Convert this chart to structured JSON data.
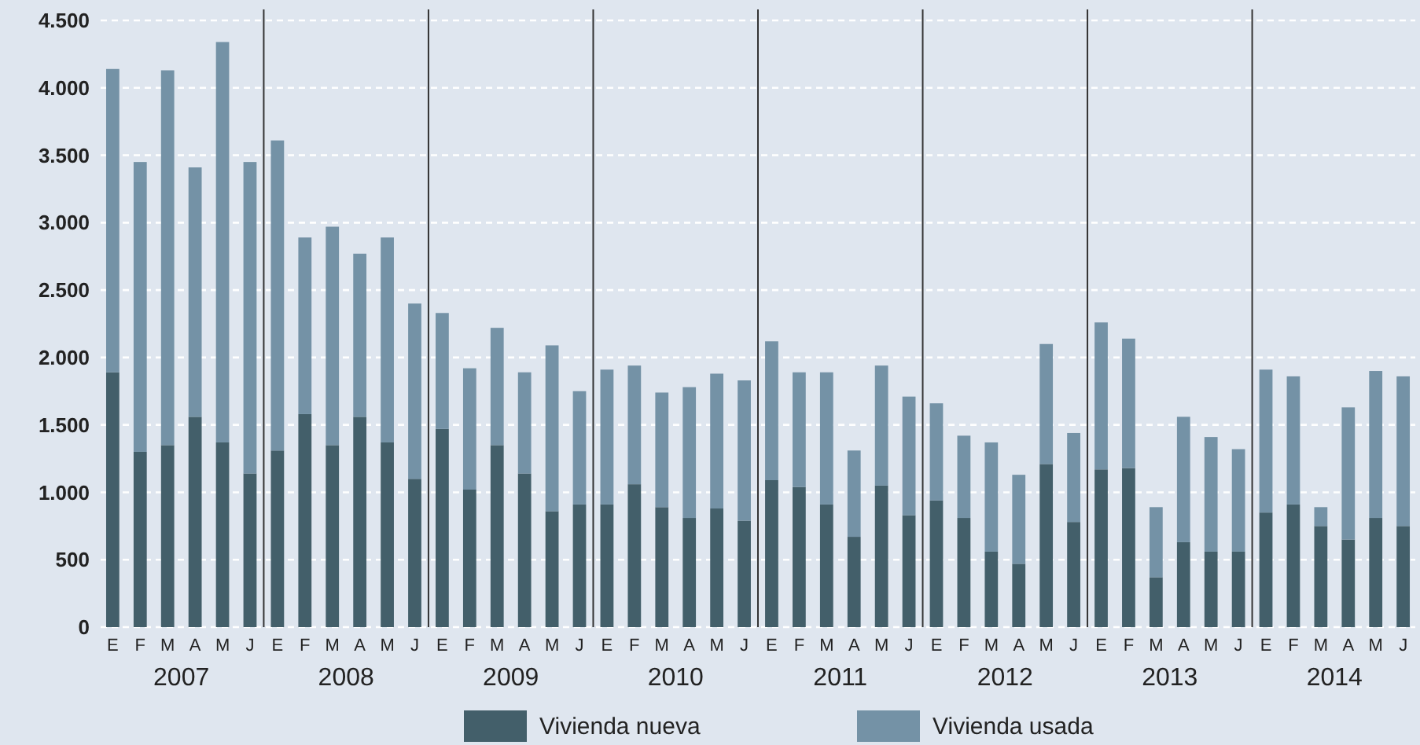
{
  "chart_data": {
    "type": "bar",
    "stacked": true,
    "categories": [
      "E",
      "F",
      "M",
      "A",
      "M",
      "J",
      "E",
      "F",
      "M",
      "A",
      "M",
      "J",
      "E",
      "F",
      "M",
      "A",
      "M",
      "J",
      "E",
      "F",
      "M",
      "A",
      "M",
      "J",
      "E",
      "F",
      "M",
      "A",
      "M",
      "J",
      "E",
      "F",
      "M",
      "A",
      "M",
      "J",
      "E",
      "F",
      "M",
      "A",
      "M",
      "J",
      "E",
      "F",
      "M",
      "A",
      "M",
      "J"
    ],
    "series": [
      {
        "name": "Vivienda nueva",
        "color": "#435f6a",
        "values": [
          1890,
          1300,
          1350,
          1560,
          1370,
          1140,
          1310,
          1580,
          1350,
          1560,
          1370,
          1100,
          1470,
          1020,
          1350,
          1140,
          860,
          910,
          910,
          1060,
          890,
          810,
          880,
          790,
          1090,
          1040,
          910,
          670,
          1050,
          830,
          940,
          810,
          560,
          470,
          1210,
          780,
          1170,
          1180,
          370,
          630,
          560,
          560,
          850,
          910,
          750,
          650,
          810,
          750
        ]
      },
      {
        "name": "Vivienda usada",
        "color": "#7492a6",
        "values": [
          2250,
          2150,
          2780,
          1850,
          2970,
          2310,
          2300,
          1310,
          1620,
          1210,
          1520,
          1300,
          860,
          900,
          870,
          750,
          1230,
          840,
          1000,
          880,
          850,
          970,
          1000,
          1040,
          1030,
          850,
          980,
          640,
          890,
          880,
          720,
          610,
          810,
          660,
          890,
          660,
          1090,
          960,
          520,
          930,
          850,
          760,
          1060,
          950,
          140,
          980,
          1090,
          1110
        ]
      }
    ],
    "ylim": [
      0,
      4500
    ],
    "yticks": [
      0,
      {
        "value": 500,
        "label": "500"
      },
      {
        "value": 1000,
        "label": "1.000"
      },
      {
        "value": 1500,
        "label": "1.500"
      },
      {
        "value": 2000,
        "label": "2.000"
      },
      {
        "value": 2500,
        "label": "2.500"
      },
      {
        "value": 3000,
        "label": "3.000"
      },
      {
        "value": 3500,
        "label": "3.500"
      },
      {
        "value": 4000,
        "label": "4.000"
      },
      {
        "value": 4500,
        "label": "4.500"
      }
    ],
    "grid": "y",
    "legend": "bottom",
    "annotations": [
      "2007",
      "2008",
      "2009",
      "2010",
      "2011",
      "2012",
      "2013",
      "2014"
    ]
  }
}
